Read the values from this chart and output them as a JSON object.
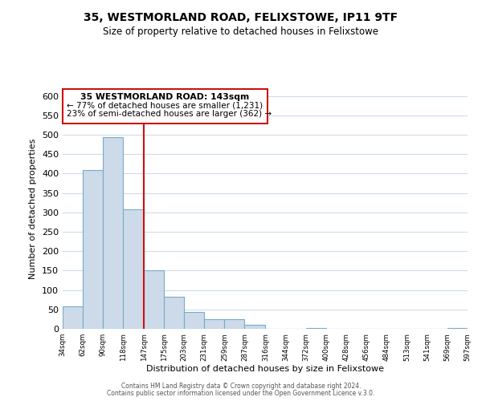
{
  "title": "35, WESTMORLAND ROAD, FELIXSTOWE, IP11 9TF",
  "subtitle": "Size of property relative to detached houses in Felixstowe",
  "xlabel": "Distribution of detached houses by size in Felixstowe",
  "ylabel": "Number of detached properties",
  "bin_edges": [
    34,
    62,
    90,
    118,
    147,
    175,
    203,
    231,
    259,
    287,
    316,
    344,
    372,
    400,
    428,
    456,
    484,
    513,
    541,
    569,
    597
  ],
  "bar_heights": [
    57,
    410,
    493,
    307,
    150,
    82,
    44,
    25,
    25,
    10,
    0,
    0,
    2,
    0,
    0,
    0,
    0,
    0,
    0,
    2
  ],
  "bar_color": "#ccdaea",
  "bar_edge_color": "#7baac8",
  "annotation_box_edge_color": "#cc1111",
  "vline_color": "#cc1111",
  "vline_x": 147,
  "annotation_text_line1": "35 WESTMORLAND ROAD: 143sqm",
  "annotation_text_line2": "← 77% of detached houses are smaller (1,231)",
  "annotation_text_line3": "23% of semi-detached houses are larger (362) →",
  "ylim": [
    0,
    620
  ],
  "yticks": [
    0,
    50,
    100,
    150,
    200,
    250,
    300,
    350,
    400,
    450,
    500,
    550,
    600
  ],
  "tick_labels": [
    "34sqm",
    "62sqm",
    "90sqm",
    "118sqm",
    "147sqm",
    "175sqm",
    "203sqm",
    "231sqm",
    "259sqm",
    "287sqm",
    "316sqm",
    "344sqm",
    "372sqm",
    "400sqm",
    "428sqm",
    "456sqm",
    "484sqm",
    "513sqm",
    "541sqm",
    "569sqm",
    "597sqm"
  ],
  "footer_line1": "Contains HM Land Registry data © Crown copyright and database right 2024.",
  "footer_line2": "Contains public sector information licensed under the Open Government Licence v.3.0.",
  "background_color": "#ffffff",
  "grid_color": "#d0dce8"
}
